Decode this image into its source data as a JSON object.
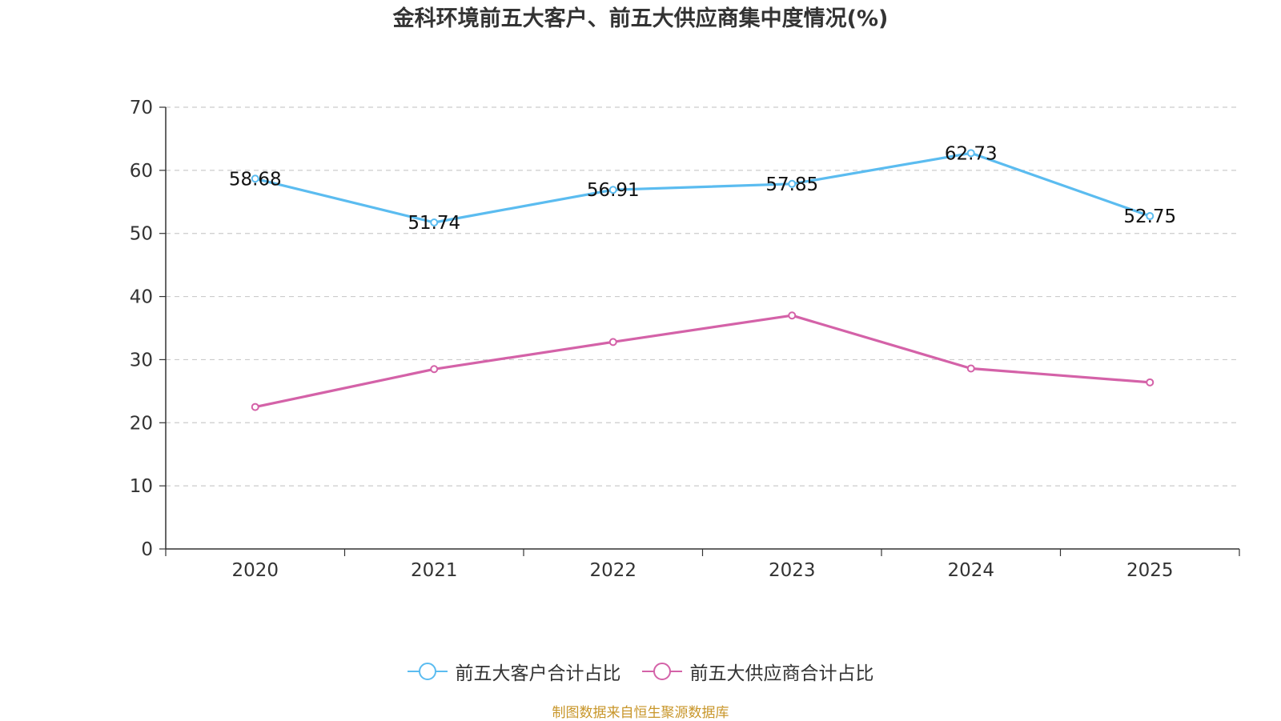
{
  "chart_data": {
    "type": "line",
    "title": "金科环境前五大客户、前五大供应商集中度情况(%)",
    "categories": [
      "2020",
      "2021",
      "2022",
      "2023",
      "2024",
      "2025"
    ],
    "ylim": [
      0,
      70
    ],
    "yticks": [
      0,
      10,
      20,
      30,
      40,
      50,
      60,
      70
    ],
    "grid": true,
    "xlabel": "",
    "ylabel": "",
    "legend_position": "bottom-center",
    "series": [
      {
        "name": "前五大客户合计占比",
        "color": "#5bbcf0",
        "values": [
          58.68,
          51.74,
          56.91,
          57.85,
          62.73,
          52.75
        ],
        "show_labels": true
      },
      {
        "name": "前五大供应商合计占比",
        "color": "#d462a8",
        "values": [
          22.5,
          28.5,
          32.8,
          37.0,
          28.6,
          26.4
        ],
        "show_labels": false
      }
    ],
    "source": "制图数据来自恒生聚源数据库"
  }
}
